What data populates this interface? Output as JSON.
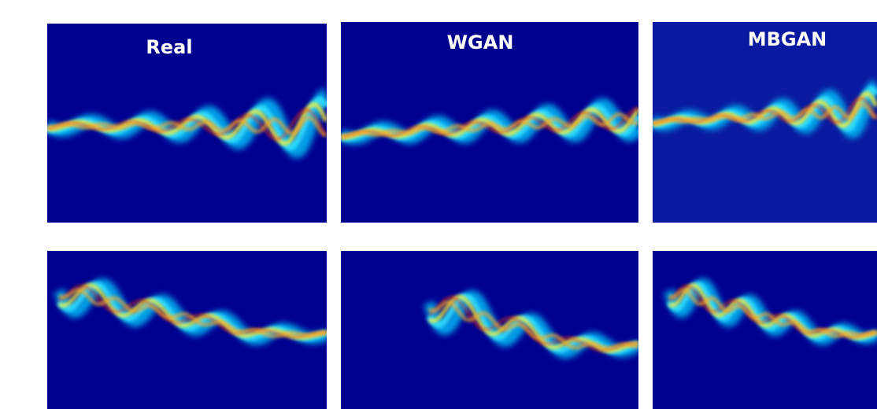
{
  "panels": [
    {
      "label": "Real"
    },
    {
      "label": "WGAN"
    },
    {
      "label": "MBGAN"
    }
  ]
}
